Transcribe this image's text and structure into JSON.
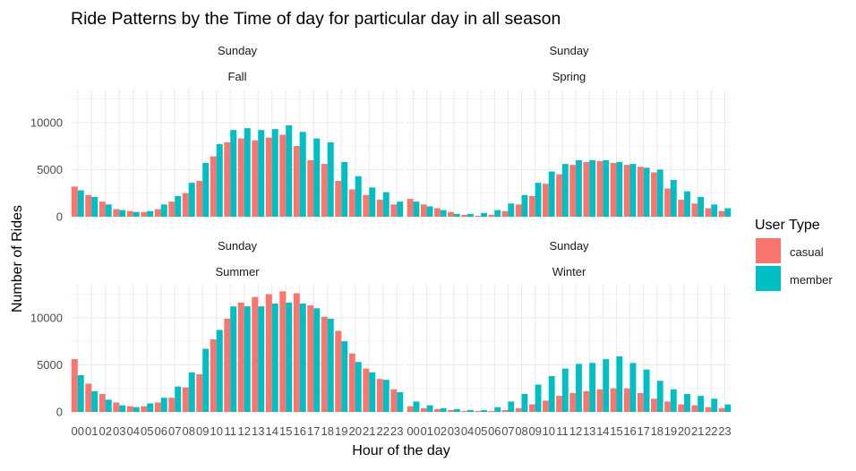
{
  "chart_data": {
    "type": "bar",
    "title": "Ride Patterns by the Time of day for particular day in all season",
    "xlabel": "Hour of the day",
    "ylabel": "Number of Rides",
    "ylim": [
      0,
      13500
    ],
    "yticks": [
      0,
      5000,
      10000
    ],
    "ytick_labels": [
      "0",
      "5000",
      "10000"
    ],
    "grid": true,
    "legend_position": "right",
    "legend_title": "User Type",
    "categories": [
      "00",
      "01",
      "02",
      "03",
      "04",
      "05",
      "06",
      "07",
      "08",
      "09",
      "10",
      "11",
      "12",
      "13",
      "14",
      "15",
      "16",
      "17",
      "18",
      "19",
      "20",
      "21",
      "22",
      "23"
    ],
    "panels": [
      {
        "day": "Sunday",
        "season": "Fall",
        "series": [
          {
            "name": "casual",
            "values": [
              3200,
              2300,
              1600,
              800,
              600,
              500,
              800,
              1600,
              2500,
              3800,
              6400,
              7900,
              8300,
              8100,
              8400,
              8700,
              7500,
              6000,
              5600,
              3800,
              2900,
              2300,
              1800,
              1300
            ]
          },
          {
            "name": "member",
            "values": [
              2800,
              2100,
              1300,
              700,
              500,
              600,
              1300,
              2200,
              3600,
              5700,
              7700,
              9200,
              9400,
              9200,
              9300,
              9700,
              9000,
              8300,
              7900,
              5800,
              4300,
              3100,
              2600,
              1600
            ]
          }
        ]
      },
      {
        "day": "Sunday",
        "season": "Spring",
        "series": [
          {
            "name": "casual",
            "values": [
              1900,
              1300,
              900,
              500,
              200,
              100,
              200,
              600,
              1300,
              2200,
              3500,
              4500,
              5500,
              5800,
              5900,
              5700,
              5500,
              5300,
              4700,
              3000,
              1800,
              1400,
              900,
              600
            ]
          },
          {
            "name": "member",
            "values": [
              1600,
              1100,
              700,
              300,
              300,
              400,
              700,
              1400,
              2300,
              3600,
              4800,
              5600,
              6000,
              6000,
              6000,
              5800,
              5600,
              5200,
              5000,
              3900,
              2700,
              2100,
              1300,
              900
            ]
          }
        ]
      },
      {
        "day": "Sunday",
        "season": "Summer",
        "series": [
          {
            "name": "casual",
            "values": [
              5600,
              3000,
              1900,
              1000,
              600,
              600,
              1000,
              1500,
              2600,
              4000,
              7700,
              9900,
              11600,
              12200,
              12500,
              12800,
              12600,
              11300,
              10100,
              8600,
              6200,
              4600,
              3500,
              2400
            ]
          },
          {
            "name": "member",
            "values": [
              3900,
              2200,
              1300,
              700,
              500,
              900,
              1500,
              2700,
              4200,
              6700,
              8700,
              11200,
              11200,
              11200,
              11500,
              11600,
              11500,
              11000,
              9900,
              7500,
              5300,
              4200,
              3400,
              2100
            ]
          }
        ]
      },
      {
        "day": "Sunday",
        "season": "Winter",
        "series": [
          {
            "name": "casual",
            "values": [
              600,
              400,
              300,
              200,
              100,
              100,
              100,
              200,
              400,
              800,
              1200,
              1700,
              2000,
              2200,
              2400,
              2500,
              2500,
              2000,
              1400,
              1100,
              800,
              700,
              500,
              400
            ]
          },
          {
            "name": "member",
            "values": [
              1100,
              700,
              400,
              300,
              200,
              200,
              500,
              1100,
              1900,
              2900,
              3800,
              4600,
              5100,
              5200,
              5600,
              5900,
              5200,
              4500,
              3300,
              2400,
              1900,
              1700,
              1400,
              800
            ]
          }
        ]
      }
    ],
    "colors": {
      "casual": "#F8766D",
      "member": "#00BFC4"
    }
  }
}
